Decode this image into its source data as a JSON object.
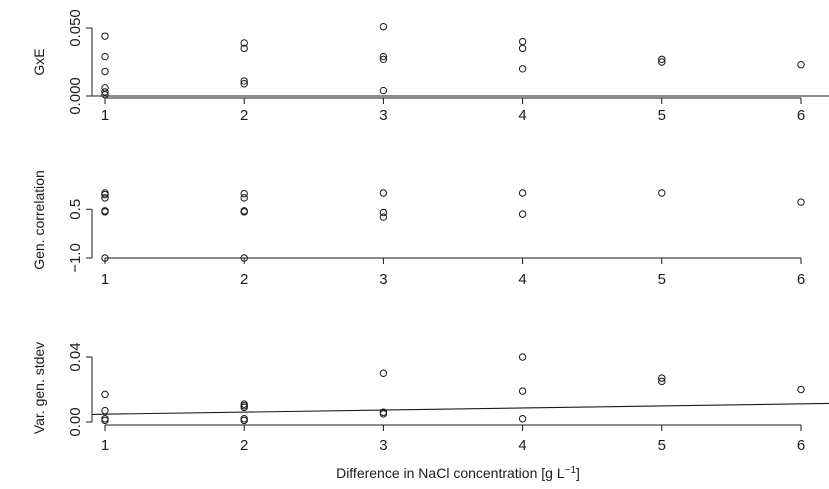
{
  "chart_data": [
    {
      "type": "scatter",
      "ylabel": "GxE",
      "xlabel": "",
      "xlim": [
        1,
        6
      ],
      "ylim": [
        0,
        0.05
      ],
      "x_ticks": [
        "1",
        "2",
        "3",
        "4",
        "5",
        "6"
      ],
      "y_ticks": [
        "0.000",
        "0.050"
      ],
      "points": [
        {
          "x": 1,
          "y": 0.044
        },
        {
          "x": 1,
          "y": 0.029
        },
        {
          "x": 1,
          "y": 0.018
        },
        {
          "x": 1,
          "y": 0.006
        },
        {
          "x": 1,
          "y": 0.003
        },
        {
          "x": 1,
          "y": 0.001
        },
        {
          "x": 2,
          "y": 0.039
        },
        {
          "x": 2,
          "y": 0.035
        },
        {
          "x": 2,
          "y": 0.011
        },
        {
          "x": 2,
          "y": 0.009
        },
        {
          "x": 3,
          "y": 0.051
        },
        {
          "x": 3,
          "y": 0.029
        },
        {
          "x": 3,
          "y": 0.027
        },
        {
          "x": 3,
          "y": 0.004
        },
        {
          "x": 4,
          "y": 0.04
        },
        {
          "x": 4,
          "y": 0.035
        },
        {
          "x": 4,
          "y": 0.02
        },
        {
          "x": 5,
          "y": 0.027
        },
        {
          "x": 5,
          "y": 0.025
        },
        {
          "x": 6,
          "y": 0.023
        }
      ],
      "line": {
        "intercept": 0.0,
        "slope": 0.0
      }
    },
    {
      "type": "scatter",
      "ylabel": "Gen. correlation",
      "xlabel": "",
      "xlim": [
        1,
        6
      ],
      "ylim": [
        -1,
        1
      ],
      "x_ticks": [
        "1",
        "2",
        "3",
        "4",
        "5",
        "6"
      ],
      "y_ticks": [
        "−1.0",
        "0.5"
      ],
      "points": [
        {
          "x": 1,
          "y": 1.0
        },
        {
          "x": 1,
          "y": 0.95
        },
        {
          "x": 1,
          "y": 0.85
        },
        {
          "x": 1,
          "y": 0.45
        },
        {
          "x": 1,
          "y": 0.42
        },
        {
          "x": 1,
          "y": -1.0
        },
        {
          "x": 2,
          "y": 0.98
        },
        {
          "x": 2,
          "y": 0.85
        },
        {
          "x": 2,
          "y": 0.45
        },
        {
          "x": 2,
          "y": 0.42
        },
        {
          "x": 2,
          "y": -1.0
        },
        {
          "x": 3,
          "y": 1.0
        },
        {
          "x": 3,
          "y": 0.4
        },
        {
          "x": 3,
          "y": 0.26
        },
        {
          "x": 4,
          "y": 1.0
        },
        {
          "x": 4,
          "y": 0.35
        },
        {
          "x": 5,
          "y": 1.0
        },
        {
          "x": 6,
          "y": 0.72
        }
      ],
      "line": null
    },
    {
      "type": "scatter",
      "ylabel": "Var. gen. stdev",
      "xlabel": "Difference in NaCl concentration [g L",
      "xlabel_superscript": "−1",
      "xlabel_suffix": "]",
      "xlim": [
        1,
        6
      ],
      "ylim": [
        0,
        0.04
      ],
      "x_ticks": [
        "1",
        "2",
        "3",
        "4",
        "5",
        "6"
      ],
      "y_ticks": [
        "0.00",
        "0.04"
      ],
      "points": [
        {
          "x": 1,
          "y": 0.017
        },
        {
          "x": 1,
          "y": 0.007
        },
        {
          "x": 1,
          "y": 0.002
        },
        {
          "x": 1,
          "y": 0.001
        },
        {
          "x": 2,
          "y": 0.011
        },
        {
          "x": 2,
          "y": 0.01
        },
        {
          "x": 2,
          "y": 0.009
        },
        {
          "x": 2,
          "y": 0.002
        },
        {
          "x": 2,
          "y": 0.001
        },
        {
          "x": 3,
          "y": 0.03
        },
        {
          "x": 3,
          "y": 0.006
        },
        {
          "x": 3,
          "y": 0.005
        },
        {
          "x": 4,
          "y": 0.04
        },
        {
          "x": 4,
          "y": 0.019
        },
        {
          "x": 4,
          "y": 0.002
        },
        {
          "x": 5,
          "y": 0.027
        },
        {
          "x": 5,
          "y": 0.025
        },
        {
          "x": 6,
          "y": 0.02
        }
      ],
      "line": {
        "intercept": 0.0048,
        "slope": 0.00127
      }
    }
  ]
}
